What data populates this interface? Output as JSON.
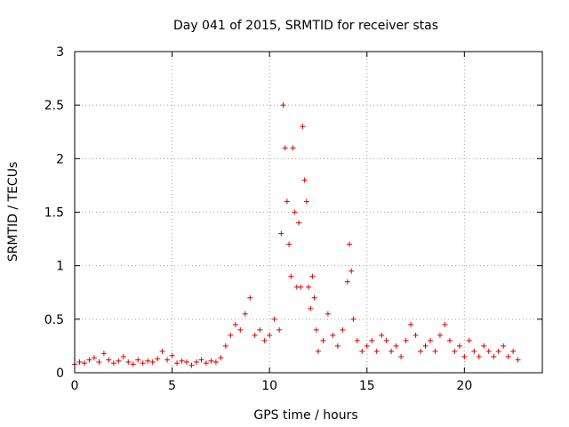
{
  "chart_data": {
    "type": "scatter",
    "title": "Day 041 of 2015, SRMTID for receiver stas",
    "xlabel": "GPS time / hours",
    "ylabel": "SRMTID / TECUs",
    "xlim": [
      0,
      24
    ],
    "ylim": [
      0,
      3
    ],
    "xticks": [
      0,
      5,
      10,
      15,
      20
    ],
    "yticks": [
      0,
      0.5,
      1,
      1.5,
      2,
      2.5,
      3
    ],
    "xtick_labels": [
      "0",
      "5",
      "10",
      "15",
      "20"
    ],
    "ytick_labels": [
      "0",
      "0.5",
      "1",
      "1.5",
      "2",
      "2.5",
      "3"
    ],
    "grid": true,
    "marker": "+",
    "color": "#e00000",
    "series": [
      {
        "name": "SRMTID",
        "x": [
          0.0,
          0.25,
          0.5,
          0.75,
          1.0,
          1.25,
          1.5,
          1.75,
          2.0,
          2.25,
          2.5,
          2.75,
          3.0,
          3.25,
          3.5,
          3.75,
          4.0,
          4.25,
          4.5,
          4.75,
          5.0,
          5.25,
          5.5,
          5.75,
          6.0,
          6.25,
          6.5,
          6.75,
          7.0,
          7.25,
          7.5,
          7.75,
          8.0,
          8.25,
          8.5,
          8.75,
          9.0,
          9.25,
          9.5,
          9.75,
          10.0,
          10.25,
          10.5,
          10.6,
          10.7,
          10.8,
          10.9,
          11.0,
          11.1,
          11.2,
          11.3,
          11.4,
          11.5,
          11.6,
          11.7,
          11.8,
          11.9,
          12.0,
          12.1,
          12.2,
          12.3,
          12.4,
          12.5,
          12.75,
          13.0,
          13.25,
          13.5,
          13.75,
          14.0,
          14.1,
          14.2,
          14.3,
          14.5,
          14.75,
          15.0,
          15.25,
          15.5,
          15.75,
          16.0,
          16.25,
          16.5,
          16.75,
          17.0,
          17.25,
          17.5,
          17.75,
          18.0,
          18.25,
          18.5,
          18.75,
          19.0,
          19.25,
          19.5,
          19.75,
          20.0,
          20.25,
          20.5,
          20.75,
          21.0,
          21.25,
          21.5,
          21.75,
          22.0,
          22.25,
          22.5,
          22.75
        ],
        "y": [
          0.08,
          0.1,
          0.09,
          0.12,
          0.14,
          0.1,
          0.18,
          0.12,
          0.09,
          0.11,
          0.15,
          0.1,
          0.08,
          0.12,
          0.09,
          0.11,
          0.1,
          0.13,
          0.2,
          0.12,
          0.16,
          0.09,
          0.11,
          0.1,
          0.07,
          0.1,
          0.12,
          0.09,
          0.11,
          0.1,
          0.14,
          0.25,
          0.35,
          0.45,
          0.4,
          0.55,
          0.7,
          0.35,
          0.4,
          0.3,
          0.35,
          0.5,
          0.4,
          1.3,
          2.5,
          2.1,
          1.6,
          1.2,
          0.9,
          2.1,
          1.5,
          0.8,
          1.4,
          0.8,
          2.3,
          1.8,
          1.6,
          0.8,
          0.6,
          0.9,
          0.7,
          0.4,
          0.2,
          0.3,
          0.55,
          0.35,
          0.25,
          0.4,
          0.85,
          1.2,
          0.95,
          0.5,
          0.3,
          0.2,
          0.25,
          0.3,
          0.2,
          0.35,
          0.3,
          0.2,
          0.25,
          0.15,
          0.3,
          0.45,
          0.35,
          0.2,
          0.25,
          0.3,
          0.2,
          0.35,
          0.45,
          0.3,
          0.2,
          0.25,
          0.15,
          0.3,
          0.2,
          0.15,
          0.25,
          0.2,
          0.15,
          0.2,
          0.25,
          0.15,
          0.2,
          0.12
        ]
      }
    ]
  }
}
